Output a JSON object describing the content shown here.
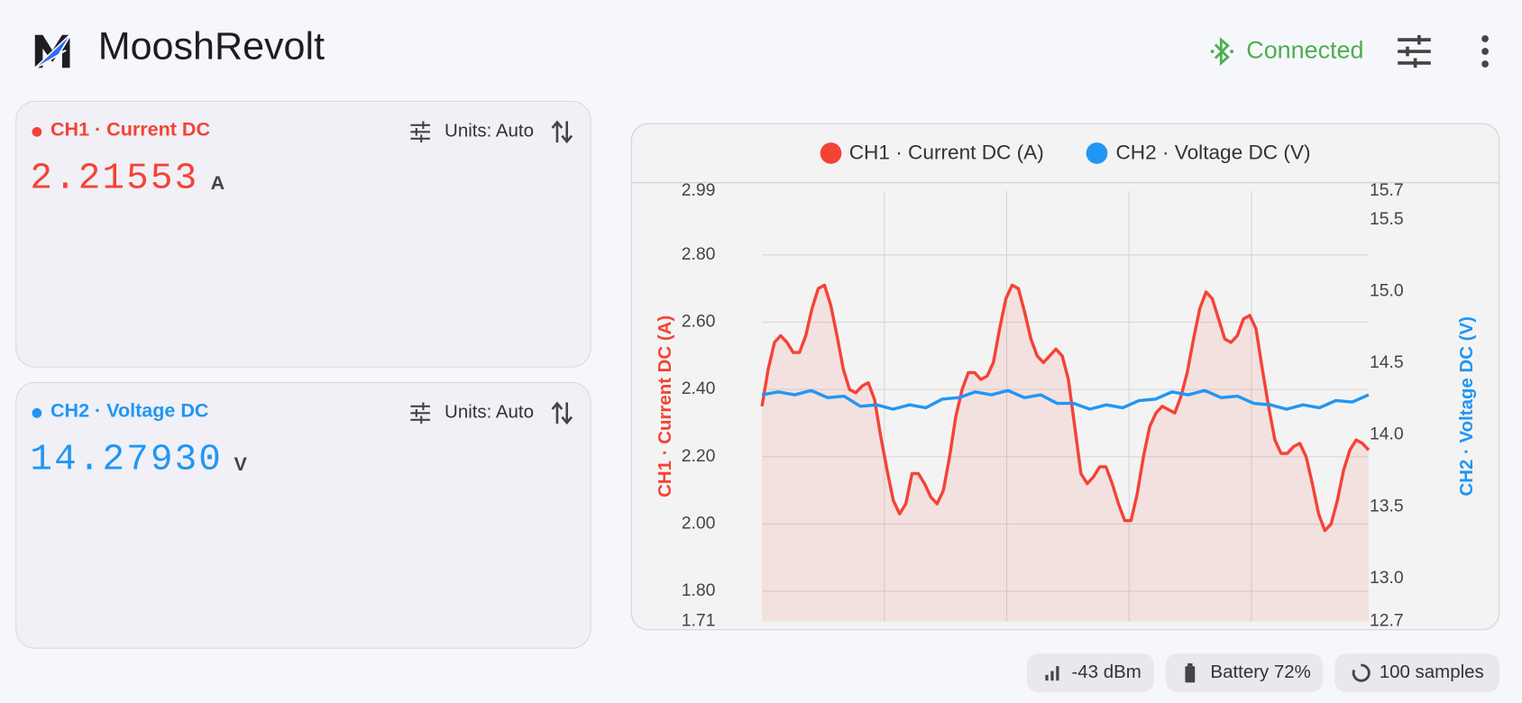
{
  "header": {
    "title": "MooshRevolt",
    "status": "Connected"
  },
  "channels": [
    {
      "label": "CH1 · Current DC",
      "units": "Units: Auto",
      "reading": "2.21553",
      "unit": "A",
      "color": "#f44336"
    },
    {
      "label": "CH2 · Voltage DC",
      "units": "Units: Auto",
      "reading": "14.27930",
      "unit": "V",
      "color": "#2196f3"
    }
  ],
  "chart_data": {
    "type": "line",
    "ylabel": "CH1 · Current DC (A)",
    "y2label": "CH2 · Voltage DC (V)",
    "ylim": [
      1.71,
      2.99
    ],
    "yticks": [
      1.71,
      {
        "value": 1.8,
        "label": "1.80"
      },
      {
        "value": 2,
        "label": "2.00"
      },
      {
        "value": 2.2,
        "label": "2.20"
      },
      {
        "value": 2.4,
        "label": "2.40"
      },
      {
        "value": 2.6,
        "label": "2.60"
      },
      {
        "value": 2.8,
        "label": "2.80"
      },
      2.99
    ],
    "y2lim": [
      12.7,
      15.7
    ],
    "y2ticks": [
      12.7,
      {
        "value": 13,
        "label": "13.0"
      },
      13.5,
      {
        "value": 14,
        "label": "14.0"
      },
      14.5,
      {
        "value": 15,
        "label": "15.0"
      },
      15.5,
      15.7
    ],
    "grid": true,
    "series": [
      {
        "name": "CH1 · Current DC (A)",
        "color": "#f44336",
        "area": true,
        "values": [
          2.35,
          2.46,
          2.54,
          2.56,
          2.54,
          2.51,
          2.51,
          2.56,
          2.64,
          2.7,
          2.71,
          2.65,
          2.56,
          2.46,
          2.4,
          2.39,
          2.41,
          2.42,
          2.37,
          2.26,
          2.16,
          2.07,
          2.03,
          2.06,
          2.15,
          2.15,
          2.12,
          2.08,
          2.06,
          2.1,
          2.2,
          2.32,
          2.4,
          2.45,
          2.45,
          2.43,
          2.44,
          2.48,
          2.58,
          2.67,
          2.71,
          2.7,
          2.63,
          2.55,
          2.5,
          2.48,
          2.5,
          2.52,
          2.5,
          2.43,
          2.29,
          2.15,
          2.12,
          2.14,
          2.17,
          2.17,
          2.12,
          2.06,
          2.01,
          2.01,
          2.09,
          2.2,
          2.29,
          2.33,
          2.35,
          2.34,
          2.33,
          2.38,
          2.45,
          2.55,
          2.64,
          2.69,
          2.67,
          2.61,
          2.55,
          2.54,
          2.56,
          2.61,
          2.62,
          2.58,
          2.46,
          2.35,
          2.25,
          2.21,
          2.21,
          2.23,
          2.24,
          2.2,
          2.12,
          2.03,
          1.98,
          2.0,
          2.07,
          2.16,
          2.22,
          2.25,
          2.24,
          2.22
        ]
      },
      {
        "name": "CH2 · Voltage DC (V)",
        "color": "#2196f3",
        "axis": "y2",
        "values": [
          14.28,
          14.3,
          14.28,
          14.31,
          14.26,
          14.27,
          14.2,
          14.21,
          14.18,
          14.21,
          14.19,
          14.25,
          14.26,
          14.3,
          14.28,
          14.31,
          14.26,
          14.28,
          14.22,
          14.22,
          14.18,
          14.21,
          14.19,
          14.24,
          14.25,
          14.3,
          14.28,
          14.31,
          14.26,
          14.27,
          14.22,
          14.21,
          14.18,
          14.21,
          14.19,
          14.24,
          14.23,
          14.28
        ]
      }
    ]
  },
  "status_bar": [
    "-43 dBm",
    "Battery 72%",
    "100 samples"
  ]
}
